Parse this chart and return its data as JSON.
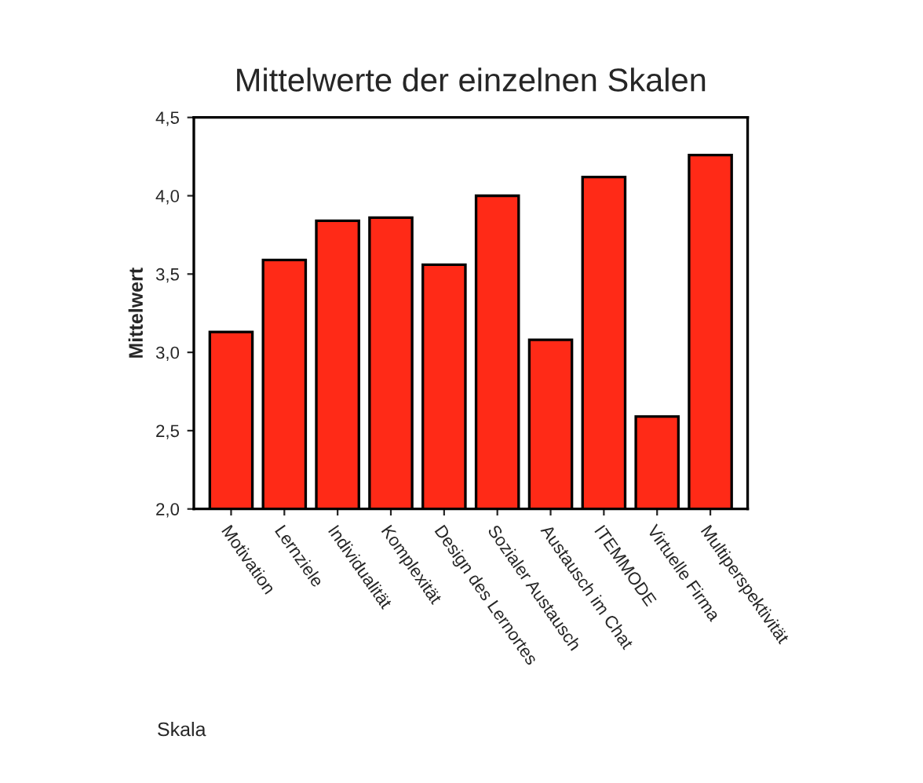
{
  "chart_data": {
    "type": "bar",
    "title": "Mittelwerte der einzelnen Skalen",
    "xlabel": "Skala",
    "ylabel": "Mittelwert",
    "categories": [
      "Motivation",
      "Lernziele",
      "Individualität",
      "Komplexität",
      "Design des Lernortes",
      "Sozialer Austausch",
      "Austausch im Chat",
      "ITEMMODE",
      "Virtuelle Firma",
      "Multiperspektivität"
    ],
    "values": [
      3.13,
      3.59,
      3.84,
      3.86,
      3.56,
      4.0,
      3.08,
      4.12,
      2.59,
      4.26
    ],
    "color": "#ff2a17",
    "ylim": [
      2.0,
      4.5
    ],
    "yticks": [
      {
        "value": 2.0,
        "label": "2,0"
      },
      {
        "value": 2.5,
        "label": "2,5"
      },
      {
        "value": 3.0,
        "label": "3,0"
      },
      {
        "value": 3.5,
        "label": "3,5"
      },
      {
        "value": 4.0,
        "label": "4,0"
      },
      {
        "value": 4.5,
        "label": "4,5"
      }
    ],
    "grid": false,
    "legend": false
  }
}
